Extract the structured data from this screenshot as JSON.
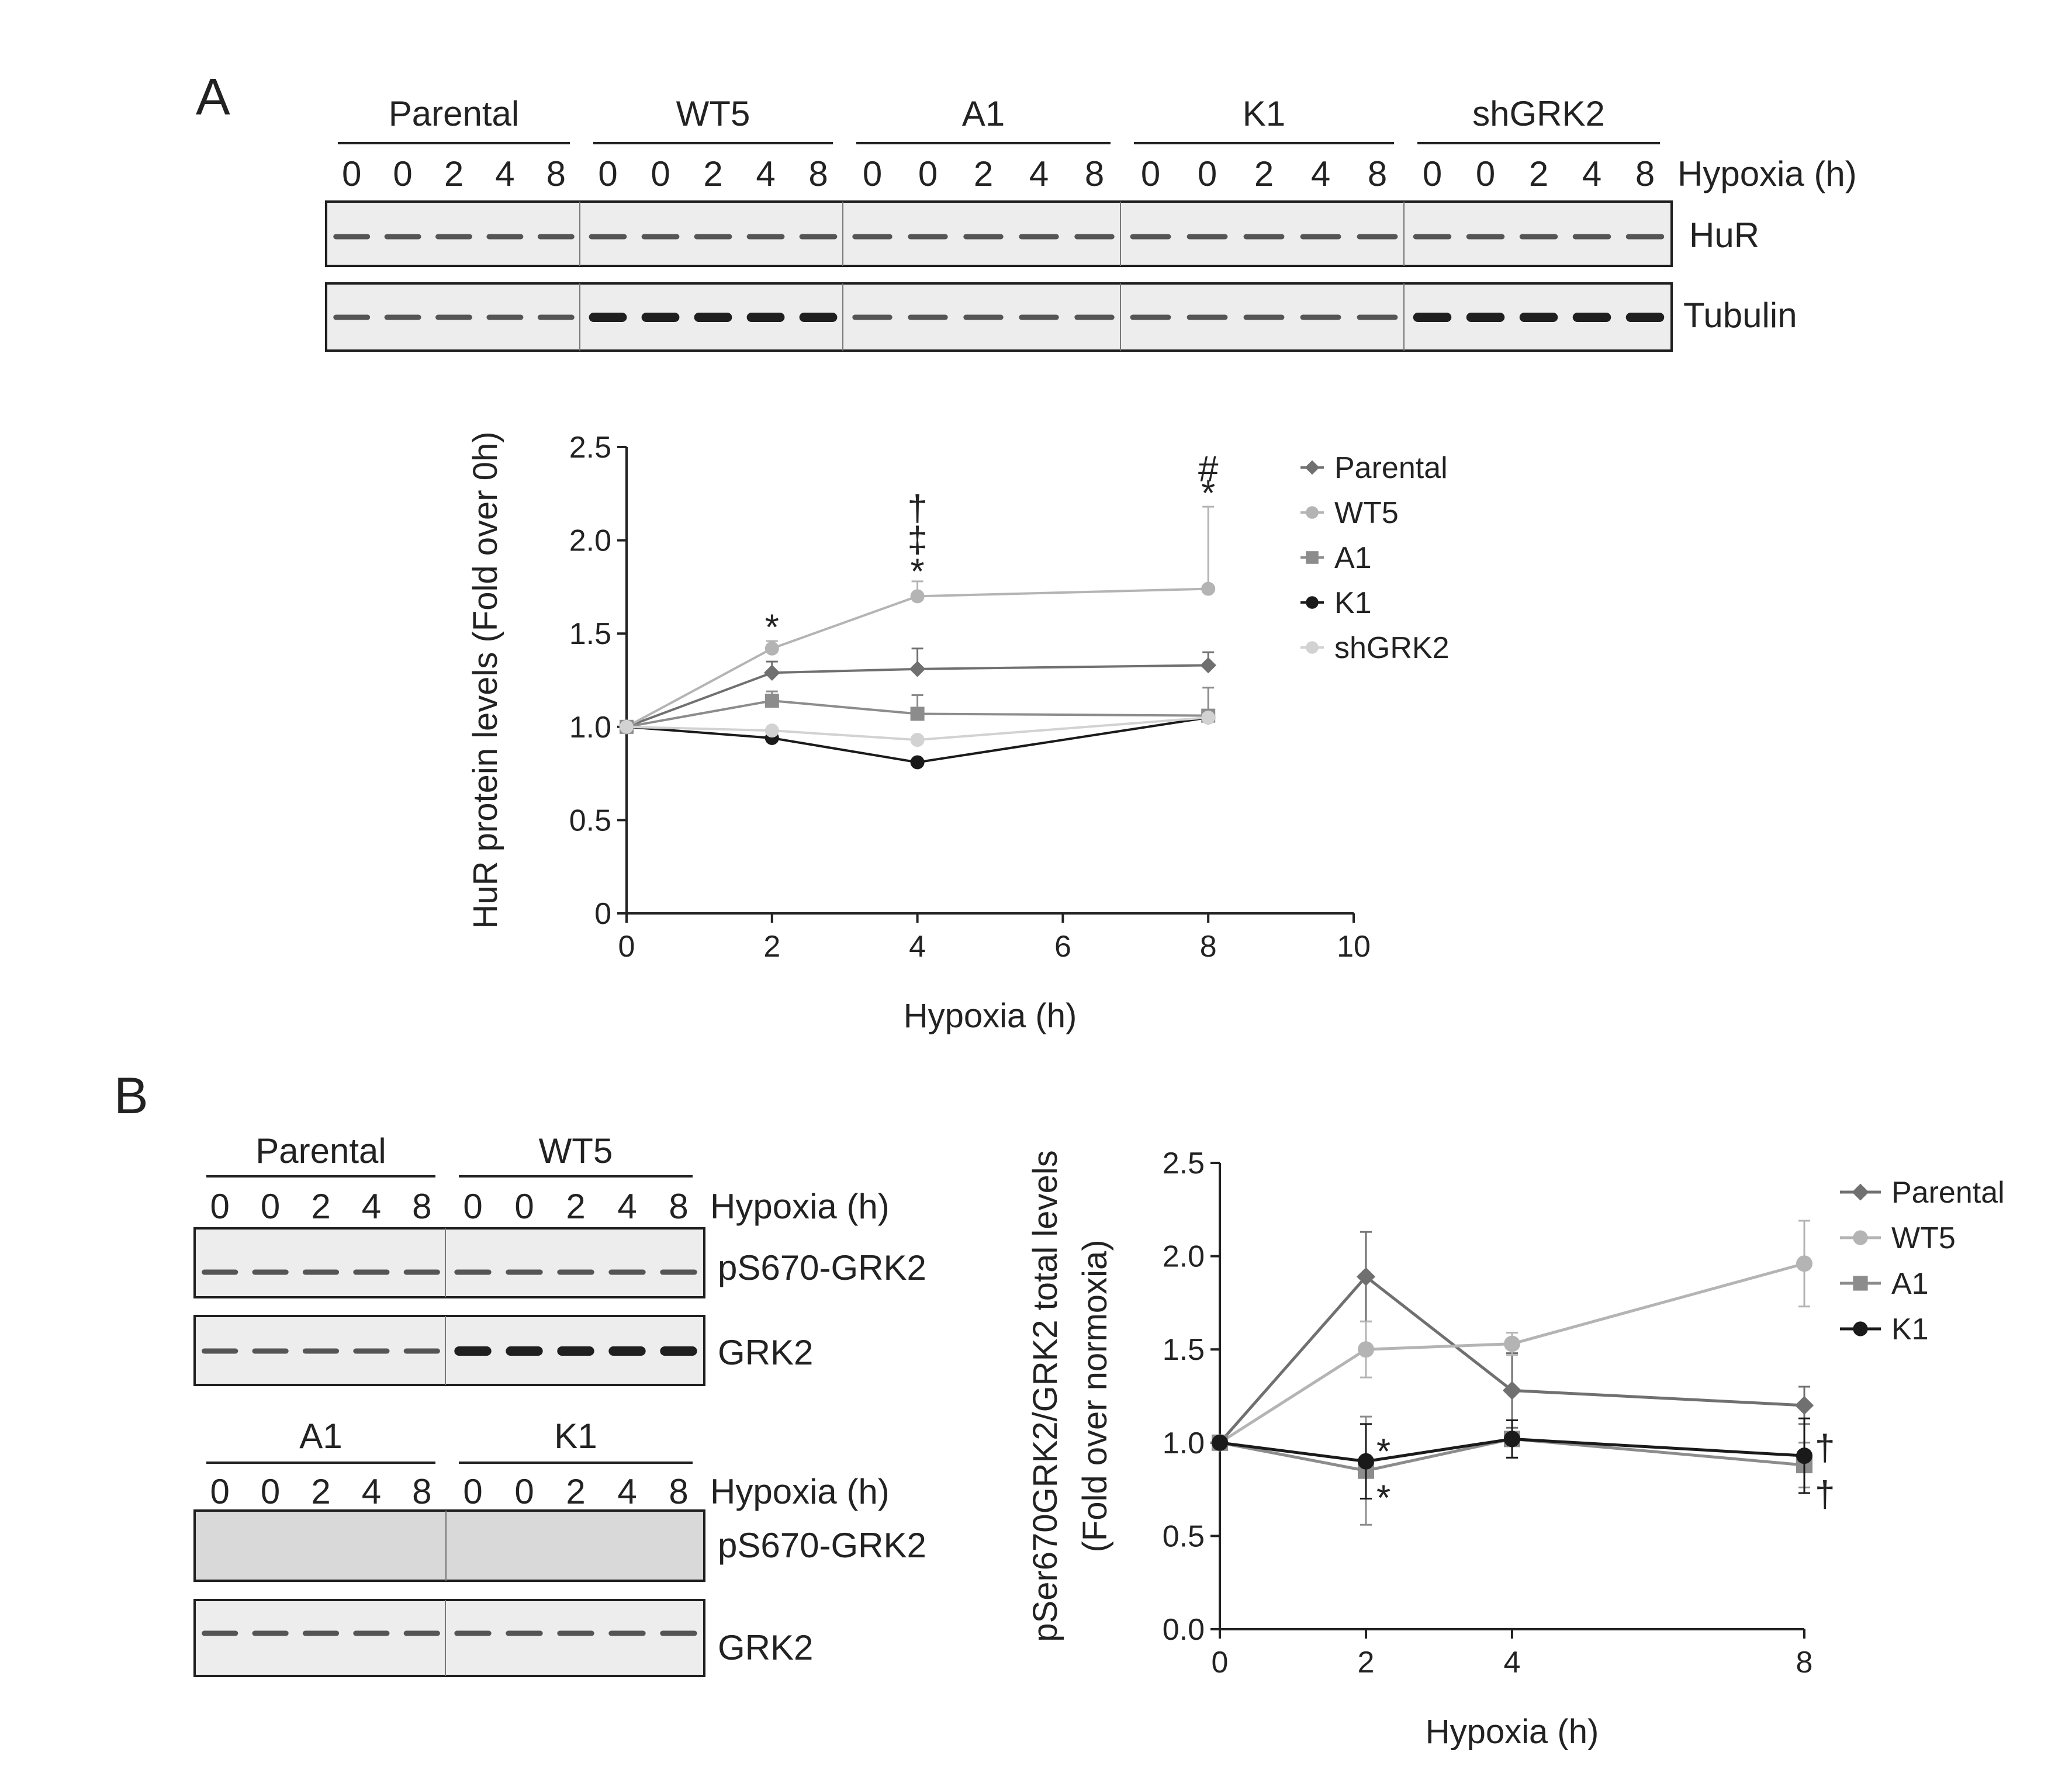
{
  "panel_a": {
    "letter": "A",
    "blot": {
      "groups": [
        "Parental",
        "WT5",
        "A1",
        "K1",
        "shGRK2"
      ],
      "lane_labels": [
        "0",
        "0",
        "2",
        "4",
        "8"
      ],
      "hypoxia_label": "Hypoxia (h)",
      "rows": [
        "HuR",
        "Tubulin"
      ]
    }
  },
  "panel_b": {
    "letter": "B",
    "blot_top": {
      "groups": [
        "Parental",
        "WT5"
      ],
      "lane_labels": [
        "0",
        "0",
        "2",
        "4",
        "8"
      ],
      "hypoxia_label": "Hypoxia (h)",
      "rows": [
        "pS670-GRK2",
        "GRK2"
      ]
    },
    "blot_bottom": {
      "groups": [
        "A1",
        "K1"
      ],
      "lane_labels": [
        "0",
        "0",
        "2",
        "4",
        "8"
      ],
      "hypoxia_label": "Hypoxia (h)",
      "rows": [
        "pS670-GRK2",
        "GRK2"
      ]
    }
  },
  "chart_data": [
    {
      "type": "line",
      "xlabel": "Hypoxia (h)",
      "ylabel": "HuR protein levels (Fold over 0h)",
      "xlim": [
        0,
        10
      ],
      "ylim": [
        0,
        2.5
      ],
      "xticks": [
        "0",
        "2",
        "4",
        "6",
        "8",
        "10"
      ],
      "yticks": [
        "0",
        "0.5",
        "1.0",
        "1.5",
        "2.0",
        "2.5"
      ],
      "x": [
        0,
        2,
        4,
        8
      ],
      "legend_position": "top-right",
      "series": [
        {
          "name": "Parental",
          "marker": "diamond",
          "color": "#707070",
          "values": [
            1.0,
            1.29,
            1.31,
            1.33
          ],
          "errors": [
            0,
            0.06,
            0.11,
            0.07
          ]
        },
        {
          "name": "WT5",
          "marker": "circle",
          "color": "#b4b4b4",
          "values": [
            1.0,
            1.42,
            1.7,
            1.74
          ],
          "errors": [
            0,
            0.04,
            0.08,
            0.44
          ]
        },
        {
          "name": "A1",
          "marker": "square",
          "color": "#8c8c8c",
          "values": [
            1.0,
            1.14,
            1.07,
            1.06
          ],
          "errors": [
            0,
            0.05,
            0.1,
            0.15
          ]
        },
        {
          "name": "K1",
          "marker": "circle",
          "color": "#1a1a1a",
          "values": [
            1.0,
            0.94,
            0.81,
            1.05
          ],
          "errors": [
            0,
            0,
            0,
            0
          ]
        },
        {
          "name": "shGRK2",
          "marker": "circle",
          "color": "#d2d2d2",
          "values": [
            1.0,
            0.98,
            0.93,
            1.05
          ],
          "errors": [
            0,
            0,
            0,
            0
          ]
        }
      ],
      "annotations": [
        {
          "x": 2,
          "y": 1.53,
          "text": "*"
        },
        {
          "x": 4,
          "y": 1.83,
          "text": "*"
        },
        {
          "x": 4,
          "y": 2.0,
          "text": "‡"
        },
        {
          "x": 4,
          "y": 2.17,
          "text": "†"
        },
        {
          "x": 8,
          "y": 2.25,
          "text": "*"
        },
        {
          "x": 8,
          "y": 2.38,
          "text": "#"
        }
      ]
    },
    {
      "type": "line",
      "xlabel": "Hypoxia (h)",
      "ylabel": "pSer670GRK2/GRK2 total levels",
      "ylabel2": "(Fold over normoxia)",
      "xlim": [
        0,
        8
      ],
      "ylim": [
        0,
        2.5
      ],
      "xticks": [
        "0",
        "2",
        "4",
        "8"
      ],
      "yticks": [
        "0.0",
        "0.5",
        "1.0",
        "1.5",
        "2.0",
        "2.5"
      ],
      "x": [
        0,
        2,
        4,
        8
      ],
      "legend_position": "top-right",
      "series": [
        {
          "name": "Parental",
          "marker": "diamond",
          "color": "#707070",
          "values": [
            1.0,
            1.89,
            1.28,
            1.2
          ],
          "errors": [
            0,
            0.24,
            0.2,
            0.1
          ]
        },
        {
          "name": "WT5",
          "marker": "circle",
          "color": "#b4b4b4",
          "values": [
            1.0,
            1.5,
            1.53,
            1.96
          ],
          "errors": [
            0,
            0.15,
            0.06,
            0.23
          ]
        },
        {
          "name": "A1",
          "marker": "square",
          "color": "#8c8c8c",
          "values": [
            1.0,
            0.85,
            1.02,
            0.88
          ],
          "errors": [
            0,
            0.29,
            0.1,
            0.12
          ]
        },
        {
          "name": "K1",
          "marker": "circle",
          "color": "#1a1a1a",
          "values": [
            1.0,
            0.9,
            1.02,
            0.93
          ],
          "errors": [
            0,
            0.2,
            0.1,
            0.2
          ]
        }
      ],
      "annotations": [
        {
          "x": 2,
          "y": 0.95,
          "text": "*"
        },
        {
          "x": 2,
          "y": 0.7,
          "text": "*"
        },
        {
          "x": 8,
          "y": 0.97,
          "text": "†"
        },
        {
          "x": 8,
          "y": 0.72,
          "text": "†"
        }
      ]
    }
  ]
}
